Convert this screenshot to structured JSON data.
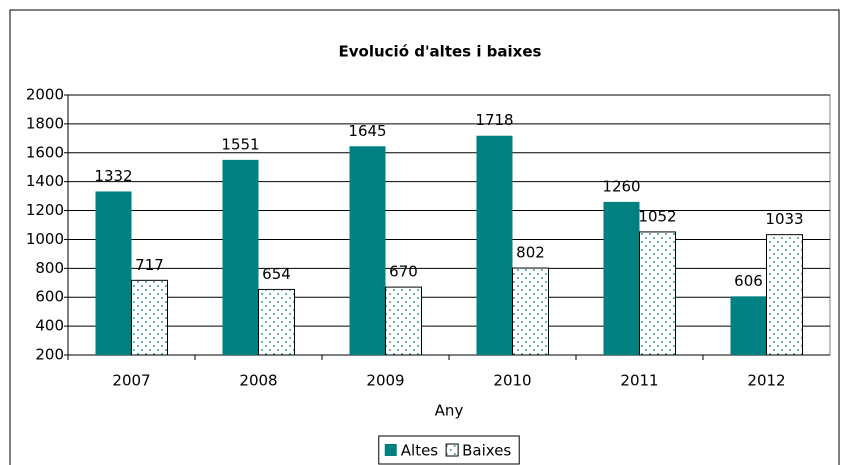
{
  "chart_data": {
    "type": "bar",
    "title": "Evolució d'altes i baixes",
    "x_label": "Any",
    "categories": [
      "2007",
      "2008",
      "2009",
      "2010",
      "2011",
      "2012"
    ],
    "series": [
      {
        "name": "Altes",
        "color": "#008080",
        "pattern": "solid",
        "values": [
          1332,
          1551,
          1645,
          1718,
          1260,
          606
        ]
      },
      {
        "name": "Baixes",
        "color": "#008080",
        "pattern": "dots",
        "values": [
          717,
          654,
          670,
          802,
          1052,
          1033
        ]
      }
    ],
    "ylim": [
      200,
      2000
    ],
    "yticks": [
      200,
      400,
      600,
      800,
      1000,
      1200,
      1400,
      1600,
      1800,
      2000
    ],
    "grid": true,
    "legend": "bottom"
  }
}
